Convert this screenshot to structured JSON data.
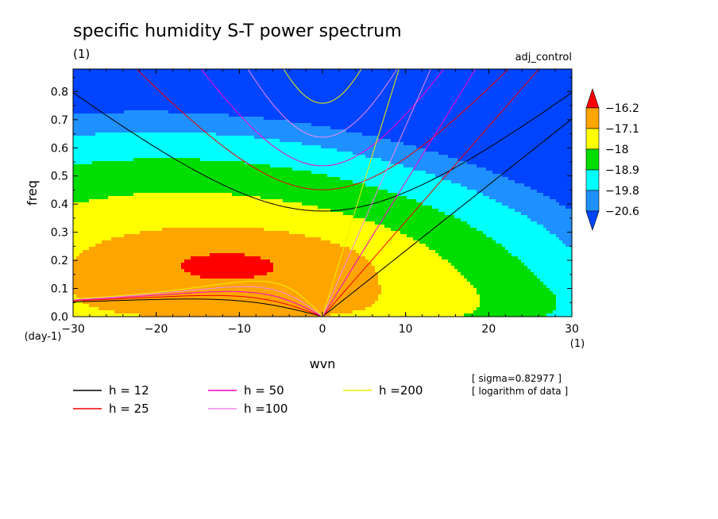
{
  "chart_data": {
    "type": "heatmap",
    "title": "specific humidity S-T power spectrum",
    "subtitle_left": "(1)",
    "subtitle_right": "adj_control",
    "xlabel": "wvn",
    "ylabel": "freq",
    "x_unit_label": "(1)",
    "y_unit_label": "(day-1)",
    "xlim": [
      -30,
      30
    ],
    "ylim": [
      0,
      0.88
    ],
    "x_ticks": [
      -30,
      -20,
      -10,
      0,
      10,
      20,
      30
    ],
    "x_tick_labels": [
      "−30",
      "−20",
      "−10",
      "0",
      "10",
      "20",
      "30"
    ],
    "y_ticks": [
      0,
      0.1,
      0.2,
      0.3,
      0.4,
      0.5,
      0.6,
      0.7,
      0.8
    ],
    "y_tick_labels": [
      "0.0",
      "0.1",
      "0.2",
      "0.3",
      "0.4",
      "0.5",
      "0.6",
      "0.7",
      "0.8"
    ],
    "colorbar": {
      "levels": [
        -16.2,
        -17.1,
        -18,
        -18.9,
        -19.8,
        -20.6
      ],
      "level_labels": [
        "−16.2",
        "−17.1",
        "−18",
        "−18.9",
        "−19.8",
        "−20.6"
      ],
      "colors_top_to_bottom": [
        "#ff0000",
        "#ffa500",
        "#ffff00",
        "#00dd00",
        "#00ffff",
        "#1e90ff",
        "#0044ff"
      ]
    },
    "dispersion_curves": [
      {
        "name": "h = 12",
        "h": 12,
        "color": "#000000"
      },
      {
        "name": "h = 25",
        "h": 25,
        "color": "#ee0000"
      },
      {
        "name": "h = 50",
        "h": 50,
        "color": "#ff00cc"
      },
      {
        "name": "h =100",
        "h": 100,
        "color": "#ee88ee"
      },
      {
        "name": "h =200",
        "h": 200,
        "color": "#eeee00"
      }
    ],
    "annotations": [
      "[ sigma=0.82977 ]",
      "[ logarithm of data ]"
    ]
  }
}
